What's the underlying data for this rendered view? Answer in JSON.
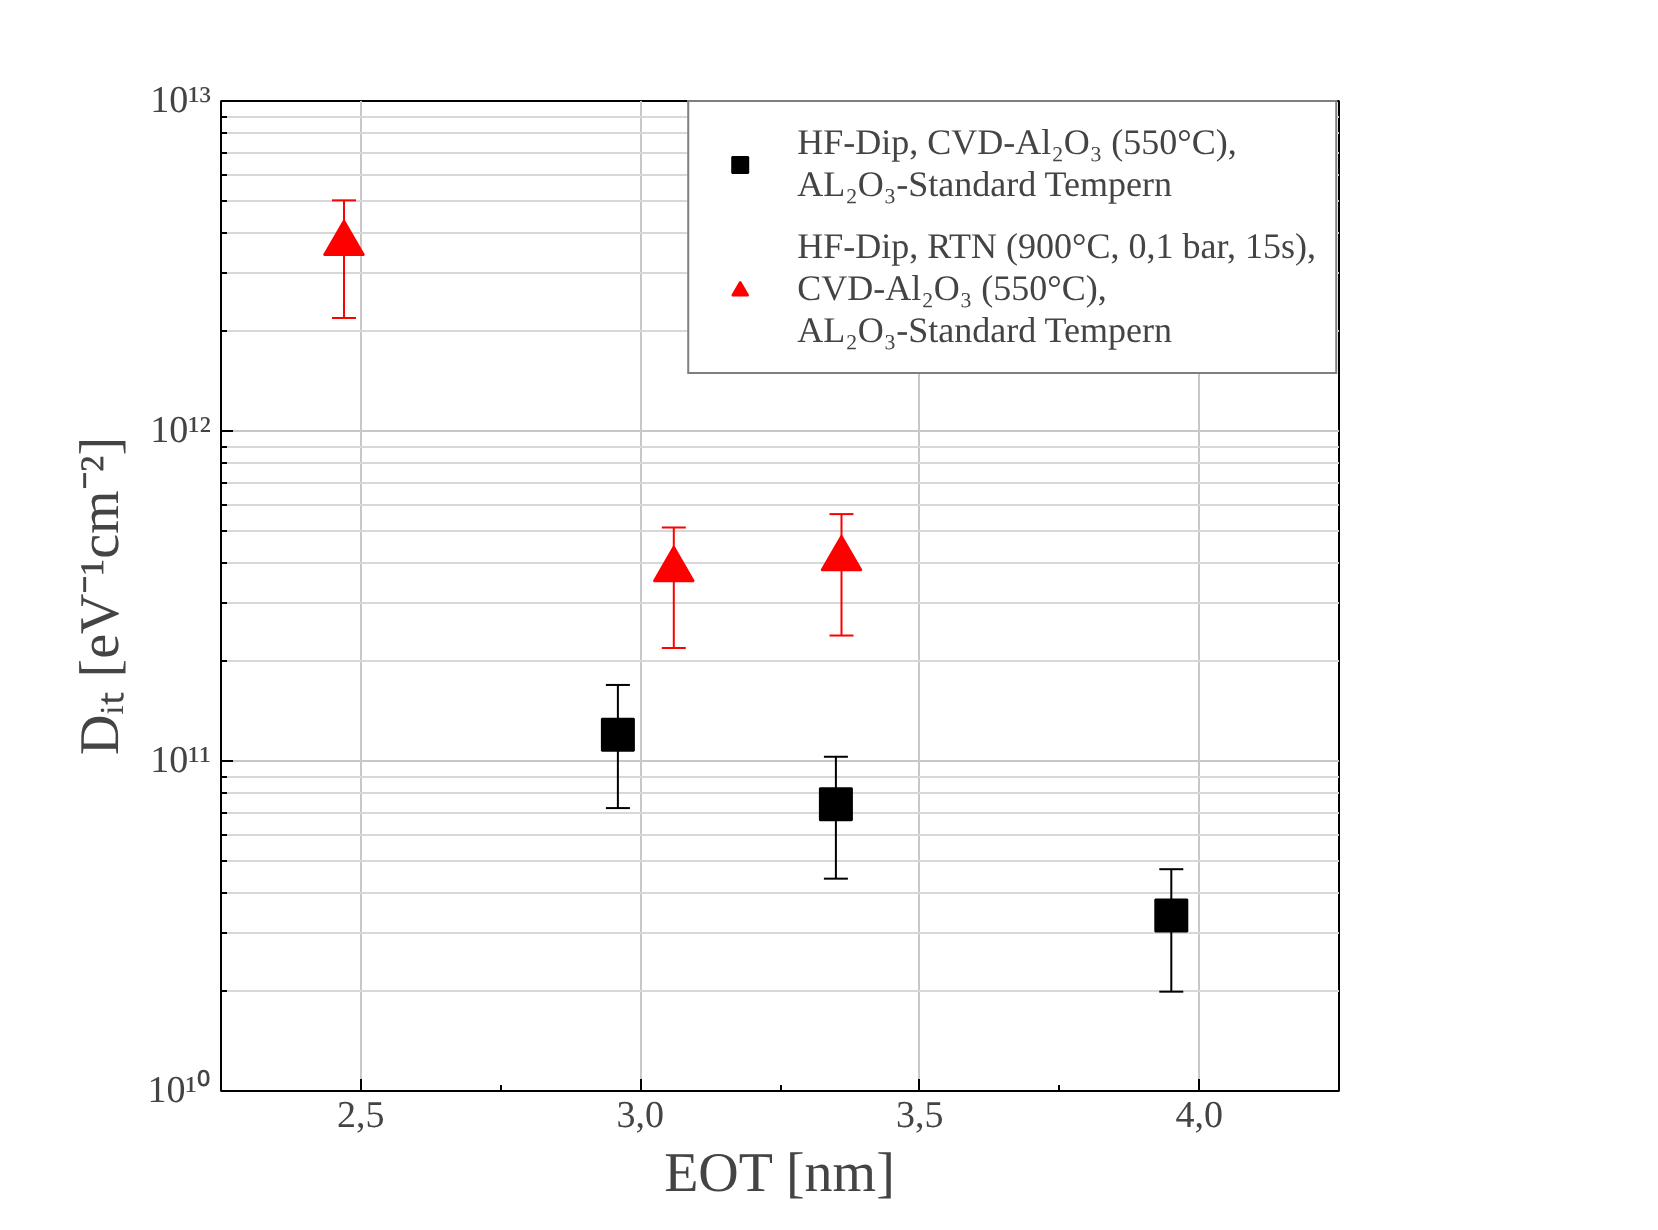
{
  "chart_data": {
    "type": "scatter",
    "xlabel": "EOT [nm]",
    "ylabel": "Dᵢₜ [eV⁻¹cm⁻²]",
    "xlim": [
      2.25,
      4.25
    ],
    "xticks": [
      {
        "value": 2.5,
        "label": "2,5"
      },
      {
        "value": 3.0,
        "label": "3,0"
      },
      {
        "value": 3.5,
        "label": "3,5"
      },
      {
        "value": 4.0,
        "label": "4,0"
      }
    ],
    "ylim": [
      10000000000.0,
      10000000000000.0
    ],
    "yticks": [
      {
        "value": 10000000000.0,
        "label": "10¹⁰"
      },
      {
        "value": 100000000000.0,
        "label": "10¹¹"
      },
      {
        "value": 1000000000000.0,
        "label": "10¹²"
      },
      {
        "value": 10000000000000.0,
        "label": "10¹³"
      }
    ],
    "log": "y",
    "grid": true,
    "legend": "top right",
    "series": [
      {
        "name": "HF-Dip, CVD-Al₂O₃ (550°C),\nAL₂O₃-Standard Tempern",
        "color": "#000000",
        "marker": "square",
        "x": [
          2.96,
          3.35,
          3.95
        ],
        "values": [
          120000000000.0,
          74000000000.0,
          34000000000.0
        ],
        "errors": [
          [
            72000000000.0,
            170000000000.0
          ],
          [
            44000000000.0,
            103000000000.0
          ],
          [
            20000000000.0,
            47000000000.0
          ]
        ]
      },
      {
        "name": "HF-Dip, RTN (900°C, 0,1 bar, 15s),\nCVD-Al₂O₃ (550°C),\nAL₂O₃-Standard Tempern",
        "color": "#ff0000",
        "marker": "triangle",
        "x": [
          2.47,
          3.06,
          3.36
        ],
        "values": [
          3700000000000.0,
          380000000000.0,
          410000000000.0
        ],
        "errors": [
          [
            2200000000000.0,
            5000000000000.0
          ],
          [
            220000000000.0,
            510000000000.0
          ],
          [
            240000000000.0,
            560000000000.0
          ]
        ]
      }
    ]
  }
}
